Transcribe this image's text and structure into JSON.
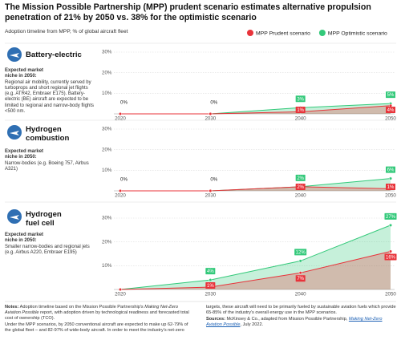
{
  "title": "The Mission Possible Partnership (MPP) prudent scenario estimates alternative propulsion penetration of 21% by 2050 vs. 38% for the optimistic scenario",
  "subtitle": "Adoption timeline from MPP, % of global aircraft fleet",
  "chart_data": [
    {
      "type": "area",
      "title": "Battery-electric",
      "niche_label": "Expected market niche in 2050:",
      "niche_text": "Regional air mobility, currently served by turboprops and short regional jet flights (e.g. ATR42, Embraer E175). Battery-electric (BE) aircraft are expected to be limited to regional and narrow-body flights <500 nm.",
      "categories": [
        "2020",
        "2030",
        "2040",
        "2050"
      ],
      "baseline_labels": [
        "0%",
        "0%",
        null,
        null
      ],
      "series": [
        {
          "name": "MPP Prudent scenario",
          "color": "#e8333a",
          "values": [
            0,
            0,
            1,
            4
          ],
          "value_labels": [
            null,
            null,
            "1%",
            "4%"
          ]
        },
        {
          "name": "MPP Optimistic scenario",
          "color": "#33c97a",
          "values": [
            0,
            0,
            3,
            5
          ],
          "value_labels": [
            null,
            null,
            "3%",
            "5%"
          ]
        }
      ],
      "ylim": [
        0,
        30
      ],
      "yticks": [
        {
          "value": 10,
          "label": "10%"
        },
        {
          "value": 20,
          "label": "20%"
        },
        {
          "value": 30,
          "label": "30%"
        }
      ],
      "grid": true
    },
    {
      "type": "area",
      "title": "Hydrogen combustion",
      "niche_label": "Expected market niche in 2050:",
      "niche_text": "Narrow-bodies (e.g. Boeing 757, Airbus A321)",
      "categories": [
        "2020",
        "2030",
        "2040",
        "2050"
      ],
      "baseline_labels": [
        "0%",
        "0%",
        null,
        null
      ],
      "series": [
        {
          "color": "#e8333a",
          "values": [
            0,
            0,
            2,
            1
          ],
          "value_labels": [
            null,
            null,
            "2%",
            "1%"
          ]
        },
        {
          "color": "#33c97a",
          "values": [
            0,
            0,
            2,
            6
          ],
          "value_labels": [
            null,
            null,
            "2%",
            "6%"
          ]
        }
      ],
      "ylim": [
        0,
        30
      ],
      "yticks": [
        {
          "value": 10,
          "label": "10%"
        },
        {
          "value": 20,
          "label": "20%"
        },
        {
          "value": 30,
          "label": "30%"
        }
      ],
      "grid": true
    },
    {
      "type": "area",
      "title": "Hydrogen fuel cell",
      "niche_label": "Expected market niche in 2050:",
      "niche_text": "Smaller narrow-bodies and regional jets (e.g. Airbus A220, Embraer E195)",
      "categories": [
        "2020",
        "2030",
        "2040",
        "2050"
      ],
      "series": [
        {
          "color": "#e8333a",
          "values": [
            0,
            1,
            7,
            16
          ],
          "value_labels": [
            null,
            "1%",
            "7%",
            "16%"
          ]
        },
        {
          "color": "#33c97a",
          "values": [
            0,
            4,
            12,
            27
          ],
          "value_labels": [
            null,
            "4%",
            "12%",
            "27%"
          ]
        }
      ],
      "ylim": [
        0,
        30
      ],
      "yticks": [
        {
          "value": 10,
          "label": "10%"
        },
        {
          "value": 20,
          "label": "20%"
        },
        {
          "value": 30,
          "label": "30%"
        }
      ],
      "grid": true
    }
  ],
  "notes": {
    "label": "Notes:",
    "text_1": "Adoption timeline based on the Mission Possible Partnership's",
    "report": "Making Net-Zero Aviation Possible",
    "text_2": "report, with adoption driven by technological readiness and forecasted total cost of ownership (TCO).",
    "paragraph_2": "Under the MPP scenarios, by 2050 conventional aircraft are expected to make up 62-79% of the global fleet – and 82-97% of wide-body aircraft. In order to meet the industry's net-zero targets, these aircraft will need to be primarily fueled by sustainable aviation fuels which provide 65-85% of the industry's overall energy use in the MPP scenarios."
  },
  "sources": {
    "label": "Sources:",
    "text_1": "McKinsey & Co., adapted from Mission Possible Partnership,",
    "report": "Making Net-Zero Aviation Possible",
    "text_2": ", July 2022."
  }
}
